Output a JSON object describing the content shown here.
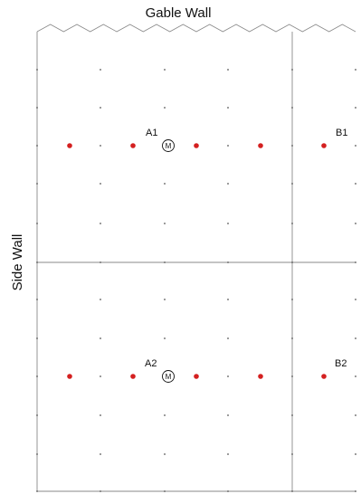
{
  "titles": {
    "gable_wall": "Gable Wall",
    "side_wall": "Side Wall"
  },
  "zones": [
    {
      "id": "A1",
      "label": "A1"
    },
    {
      "id": "B1",
      "label": "B1"
    },
    {
      "id": "A2",
      "label": "A2"
    },
    {
      "id": "B2",
      "label": "B2"
    }
  ],
  "meters": [
    {
      "zone": "A1",
      "symbol": "M"
    },
    {
      "zone": "A2",
      "symbol": "M"
    }
  ],
  "colors": {
    "line": "#8a8a8a",
    "grid_dot": "#555555",
    "sensor": "#d42020",
    "text": "#111111"
  }
}
